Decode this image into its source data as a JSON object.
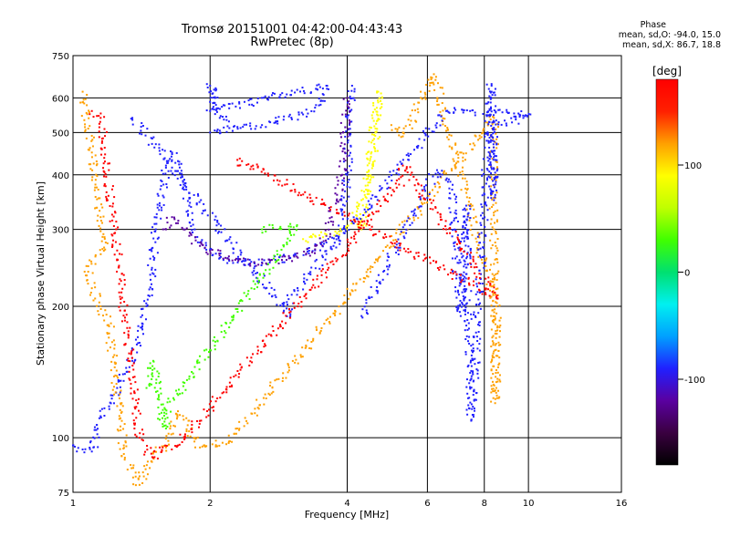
{
  "chart_data": {
    "type": "scatter",
    "title": "Tromsø 20151001 04:42:00-04:43:43",
    "subtitle": "RwPretec (8p)",
    "xlabel": "Frequency [MHz]",
    "ylabel": "Stationary phase Virtual Height [km]",
    "x_scale": "log",
    "y_scale": "log",
    "xlim": [
      1,
      16
    ],
    "ylim": [
      75,
      750
    ],
    "x_ticks": [
      1,
      2,
      4,
      6,
      8,
      10,
      16
    ],
    "y_ticks": [
      75,
      100,
      200,
      300,
      400,
      500,
      600,
      750
    ],
    "grid": true,
    "colorbar": {
      "label": "[deg]",
      "range": [
        -180,
        180
      ],
      "ticks": [
        100,
        0,
        -100
      ],
      "colors": [
        "#000000",
        "#3a0040",
        "#5a00a0",
        "#2020ff",
        "#00a0ff",
        "#00f0f0",
        "#00e070",
        "#40ff00",
        "#c0ff00",
        "#ffff00",
        "#ffa000",
        "#ff2000",
        "#ff0000"
      ]
    },
    "stats": {
      "header": "Phase",
      "o_line": "mean, sd,O: -94.0, 15.0",
      "x_line": "mean, sd,X: 86.7, 18.8"
    },
    "traces": [
      {
        "name": "",
        "phase": -100,
        "points": [
          [
            1.0,
            96
          ],
          [
            1.05,
            94
          ],
          [
            1.1,
            93
          ],
          [
            1.15,
            112
          ],
          [
            1.2,
            118
          ],
          [
            1.25,
            130
          ],
          [
            1.3,
            140
          ],
          [
            1.35,
            150
          ],
          [
            1.4,
            165
          ],
          [
            1.42,
            180
          ],
          [
            1.45,
            200
          ],
          [
            1.48,
            230
          ],
          [
            1.5,
            260
          ],
          [
            1.52,
            300
          ],
          [
            1.55,
            340
          ],
          [
            1.58,
            380
          ],
          [
            1.6,
            420
          ],
          [
            1.65,
            450
          ],
          [
            1.7,
            430
          ],
          [
            1.75,
            380
          ],
          [
            1.8,
            340
          ],
          [
            1.85,
            300
          ],
          [
            1.9,
            280
          ],
          [
            2.0,
            270
          ],
          [
            2.1,
            258
          ],
          [
            2.3,
            252
          ],
          [
            2.6,
            252
          ],
          [
            3.0,
            258
          ],
          [
            3.3,
            268
          ],
          [
            3.6,
            280
          ],
          [
            3.8,
            290
          ],
          [
            3.9,
            300
          ],
          [
            3.95,
            340
          ],
          [
            4.0,
            400
          ],
          [
            4.02,
            480
          ],
          [
            4.05,
            560
          ],
          [
            4.1,
            640
          ]
        ]
      },
      {
        "name": "",
        "phase": -110,
        "points": [
          [
            1.6,
            300
          ],
          [
            1.65,
            320
          ],
          [
            1.7,
            310
          ],
          [
            1.75,
            300
          ],
          [
            1.8,
            290
          ],
          [
            1.9,
            275
          ],
          [
            2.0,
            268
          ],
          [
            2.2,
            256
          ],
          [
            2.5,
            252
          ],
          [
            2.8,
            254
          ],
          [
            3.1,
            260
          ],
          [
            3.4,
            270
          ],
          [
            3.6,
            290
          ],
          [
            3.7,
            320
          ],
          [
            3.8,
            360
          ],
          [
            3.9,
            400
          ],
          [
            3.95,
            470
          ],
          [
            3.97,
            550
          ],
          [
            4.0,
            600
          ]
        ]
      },
      {
        "name": "",
        "phase": -95,
        "points": [
          [
            2.0,
            500
          ],
          [
            2.1,
            505
          ],
          [
            2.3,
            510
          ],
          [
            2.6,
            520
          ],
          [
            2.9,
            535
          ],
          [
            3.2,
            550
          ],
          [
            3.4,
            570
          ],
          [
            3.5,
            590
          ],
          [
            3.55,
            610
          ],
          [
            3.6,
            640
          ],
          [
            2.0,
            560
          ],
          [
            2.05,
            600
          ],
          [
            2.0,
            640
          ],
          [
            2.1,
            540
          ],
          [
            2.2,
            530
          ]
        ]
      },
      {
        "name": "",
        "phase": 95,
        "points": [
          [
            3.2,
            285
          ],
          [
            3.4,
            290
          ],
          [
            3.6,
            292
          ],
          [
            3.8,
            294
          ],
          [
            4.0,
            300
          ],
          [
            4.1,
            310
          ],
          [
            4.2,
            330
          ],
          [
            4.3,
            350
          ],
          [
            4.4,
            370
          ],
          [
            4.5,
            390
          ],
          [
            4.55,
            420
          ],
          [
            4.6,
            460
          ],
          [
            4.62,
            500
          ],
          [
            4.65,
            550
          ],
          [
            4.68,
            620
          ],
          [
            4.3,
            300
          ],
          [
            4.4,
            320
          ]
        ]
      },
      {
        "name": "",
        "phase": 120,
        "points": [
          [
            1.05,
            620
          ],
          [
            1.1,
            450
          ],
          [
            1.12,
            380
          ],
          [
            1.15,
            320
          ],
          [
            1.18,
            280
          ],
          [
            1.12,
            260
          ],
          [
            1.08,
            240
          ],
          [
            1.1,
            220
          ],
          [
            1.15,
            200
          ],
          [
            1.2,
            180
          ],
          [
            1.3,
            90
          ],
          [
            1.4,
            78
          ],
          [
            1.5,
            92
          ],
          [
            1.6,
            95
          ],
          [
            1.7,
            115
          ],
          [
            1.75,
            110
          ],
          [
            1.85,
            100
          ],
          [
            1.9,
            95
          ],
          [
            2.2,
            98
          ],
          [
            8.4,
            540
          ],
          [
            8.4,
            300
          ],
          [
            8.4,
            250
          ],
          [
            8.5,
            130
          ],
          [
            8.45,
            120
          ],
          [
            8.5,
            200
          ],
          [
            6.2,
            680
          ],
          [
            5.3,
            490
          ],
          [
            5.0,
            520
          ]
        ]
      },
      {
        "name": "",
        "phase": -90,
        "points": [
          [
            4.3,
            190
          ],
          [
            6.3,
            410
          ],
          [
            6.8,
            370
          ],
          [
            6.9,
            270
          ],
          [
            7.1,
            190
          ],
          [
            7.3,
            340
          ],
          [
            7.5,
            110
          ],
          [
            8.3,
            640
          ],
          [
            8.3,
            620
          ],
          [
            8.4,
            350
          ],
          [
            8.35,
            510
          ],
          [
            10.1,
            550
          ],
          [
            6.6,
            560
          ],
          [
            2.9,
            200
          ],
          [
            3.0,
            190
          ],
          [
            1.35,
            540
          ]
        ]
      },
      {
        "name": "",
        "phase": 170,
        "points": [
          [
            1.1,
            560
          ],
          [
            1.15,
            540
          ],
          [
            1.4,
            100
          ],
          [
            1.5,
            90
          ],
          [
            1.55,
            95
          ],
          [
            1.7,
            96
          ],
          [
            5.2,
            380
          ],
          [
            5.3,
            420
          ],
          [
            8.5,
            210
          ],
          [
            2.35,
            430
          ],
          [
            2.3,
            420
          ]
        ]
      },
      {
        "name": "",
        "phase": 20,
        "points": [
          [
            1.45,
            130
          ],
          [
            1.5,
            150
          ],
          [
            1.6,
            105
          ],
          [
            1.55,
            110
          ],
          [
            3.1,
            305
          ],
          [
            2.6,
            300
          ]
        ]
      }
    ]
  }
}
